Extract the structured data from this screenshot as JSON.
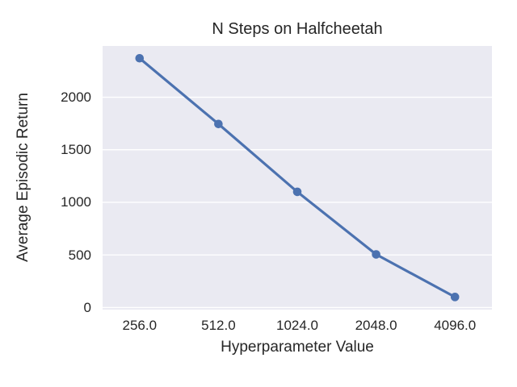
{
  "figure": {
    "title": "N Steps on Halfcheetah",
    "xlabel": "Hyperparameter Value",
    "ylabel": "Average Episodic Return"
  },
  "chart_data": {
    "type": "line",
    "title": "N Steps on Halfcheetah",
    "xlabel": "Hyperparameter Value",
    "ylabel": "Average Episodic Return",
    "x": [
      256.0,
      512.0,
      1024.0,
      2048.0,
      4096.0
    ],
    "xticklabels": [
      "256.0",
      "512.0",
      "1024.0",
      "2048.0",
      "4096.0"
    ],
    "series": [
      {
        "name": "Average Episodic Return",
        "values": [
          2370,
          1745,
          1100,
          505,
          100
        ]
      }
    ],
    "yticks": [
      0,
      500,
      1000,
      1500,
      2000
    ],
    "ylim": [
      -20,
      2487
    ],
    "x_scale": "categorical-even-spacing",
    "grid": "horizontal-only",
    "legend": false,
    "marker": "circle",
    "colors": {
      "line": "#4C72B0",
      "plot_bg": "#EAEAF2",
      "grid": "#FFFFFF",
      "text": "#262626",
      "figure_bg": "#FFFFFF"
    }
  }
}
